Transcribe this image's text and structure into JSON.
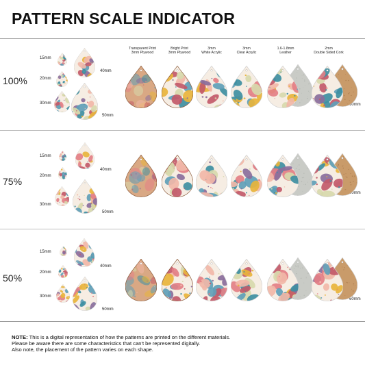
{
  "title": "PATTERN SCALE INDICATOR",
  "materials": [
    {
      "line1": "Transparent Print",
      "line2": "3mm Plywood"
    },
    {
      "line1": "Bright Print",
      "line2": "3mm Plywood"
    },
    {
      "line1": "3mm",
      "line2": "White Acrylic"
    },
    {
      "line1": "3mm",
      "line2": "Clear Acrylic"
    },
    {
      "line1": "1.6-1.8mm",
      "line2": "Leather"
    },
    {
      "line1": "2mm",
      "line2": "Double Sided Cork"
    }
  ],
  "sizes": [
    "15mm",
    "20mm",
    "30mm",
    "40mm",
    "50mm",
    "60mm"
  ],
  "sections": [
    {
      "scale": "100%"
    },
    {
      "scale": "75%"
    },
    {
      "scale": "50%"
    }
  ],
  "note": {
    "label": "NOTE:",
    "line1": "This is a digital representation of how the patterns are printed on the different materials.",
    "line2": "Please be aware there are some characteristics that can't be represented digitally.",
    "line3": "Also note, the placement of the pattern varies on each shape."
  },
  "colors": {
    "pattern_bg": "#f6ede3",
    "plywood": "#d9a884",
    "leather": "#c9cbc6",
    "cork": "#c99b6a",
    "shape_palette": [
      "#e37f86",
      "#3e8fa2",
      "#e8b43c",
      "#d7d9ad",
      "#8a6e9c",
      "#f1b7a8",
      "#5f9fb8",
      "#c25a6a"
    ]
  }
}
